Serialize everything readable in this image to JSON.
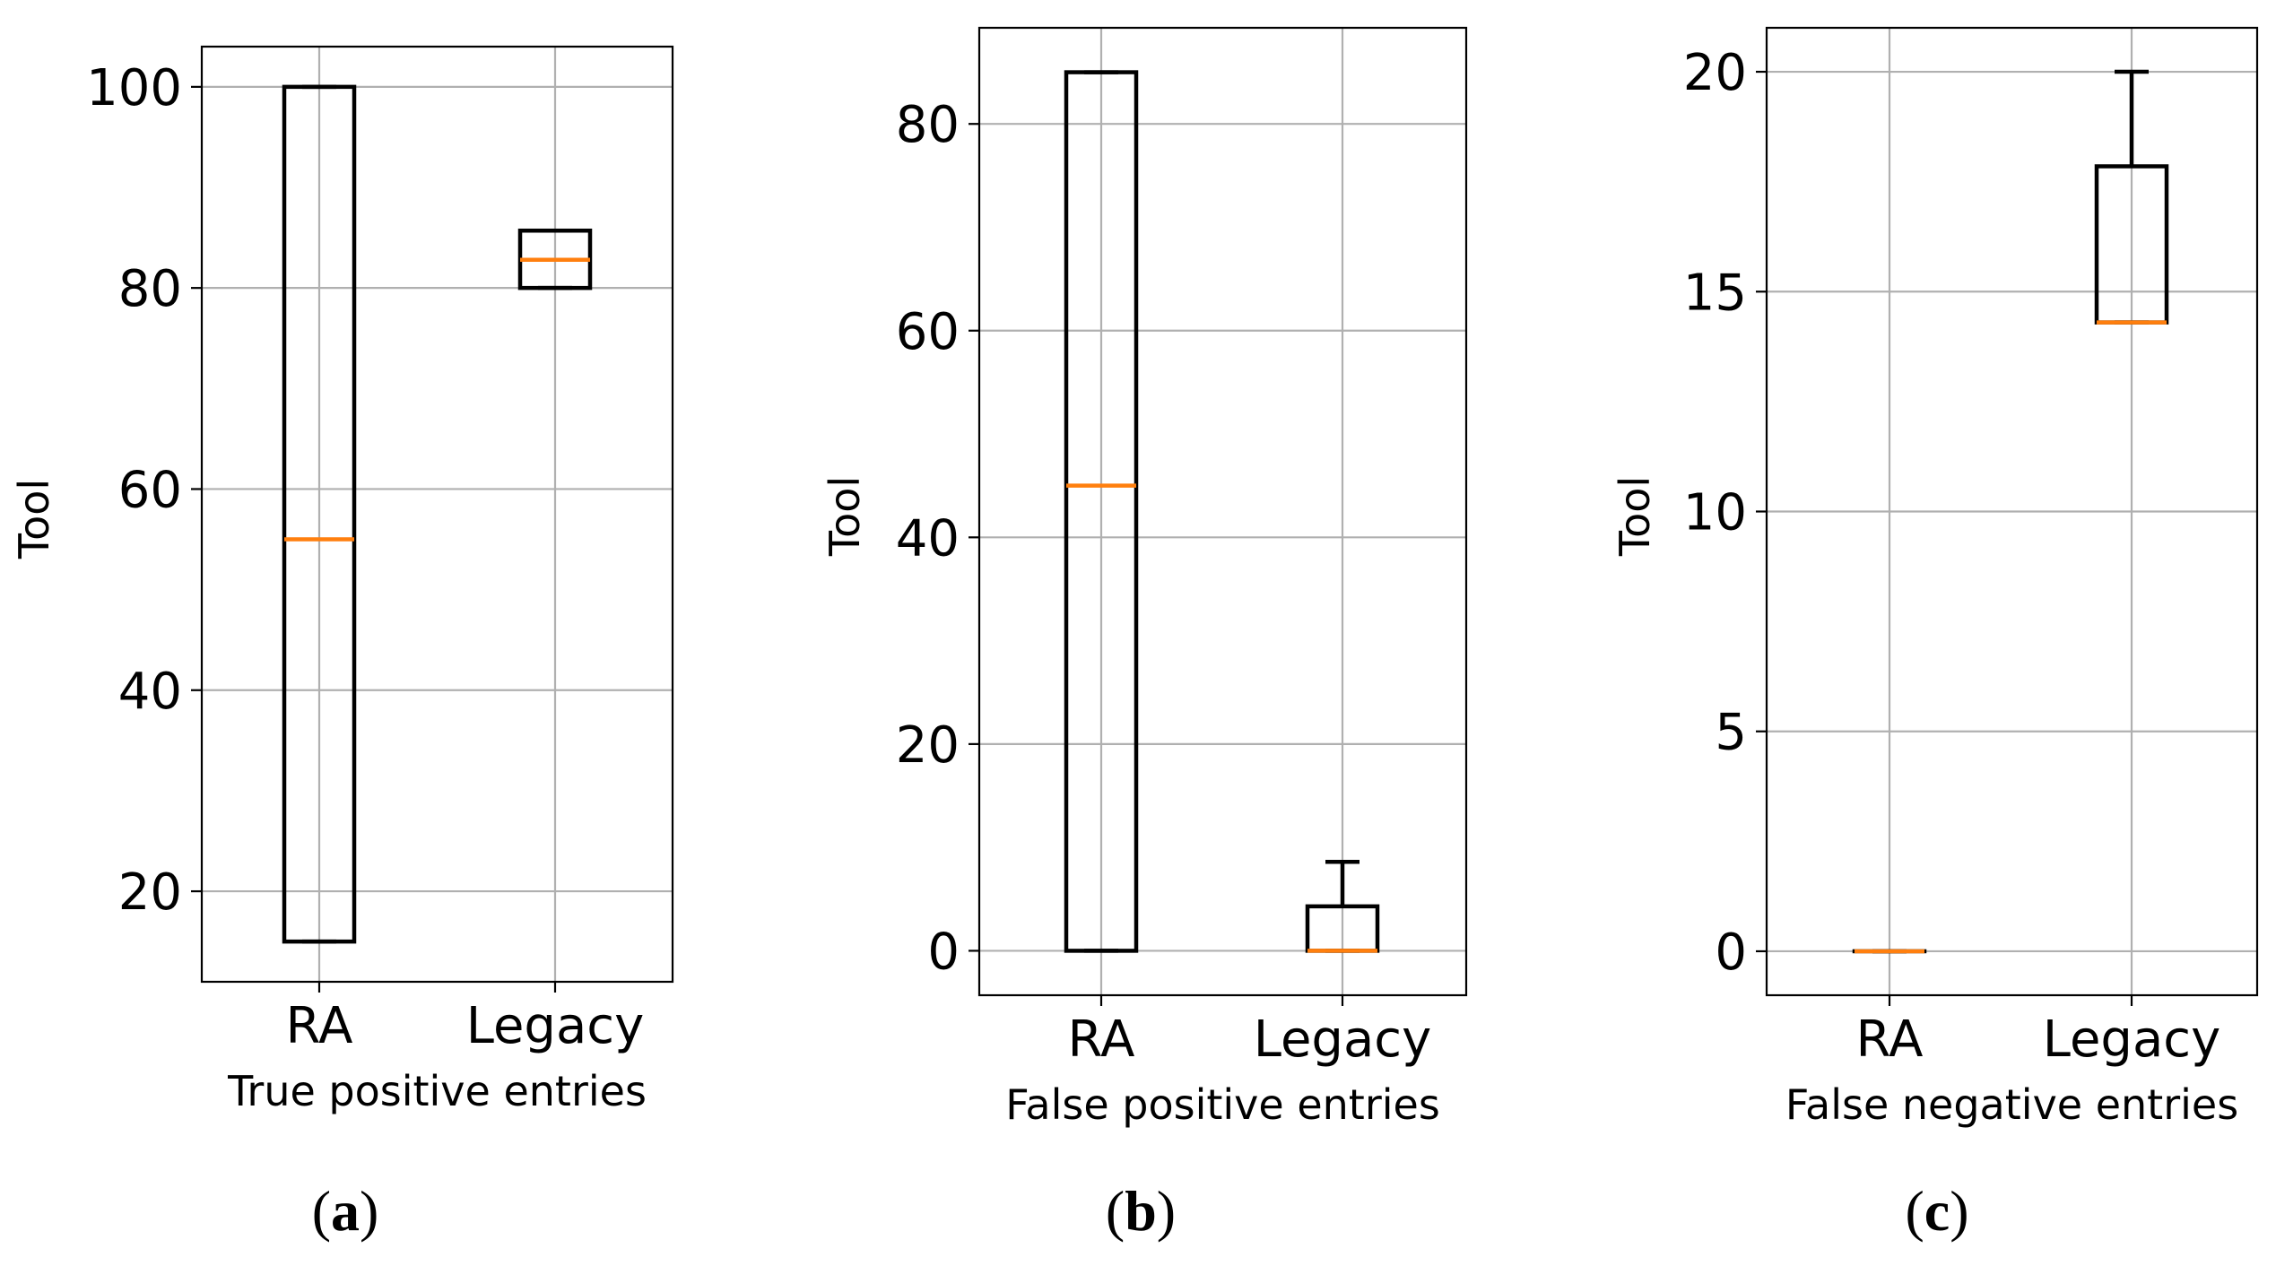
{
  "chart_data": [
    {
      "type": "box",
      "panel": "a",
      "ylabel": "Tool",
      "xlabel": "True positive entries",
      "categories": [
        "RA",
        "Legacy"
      ],
      "ylim": [
        11,
        104
      ],
      "yticks": [
        20,
        40,
        60,
        80,
        100
      ],
      "grid": true,
      "boxes": [
        {
          "category": "RA",
          "whislo": 15,
          "q1": 15,
          "med": 55,
          "q3": 100,
          "whishi": 100
        },
        {
          "category": "Legacy",
          "whislo": 80,
          "q1": 80,
          "med": 82.8,
          "q3": 85.7,
          "whishi": 85.7
        }
      ]
    },
    {
      "type": "box",
      "panel": "b",
      "ylabel": "Tool",
      "xlabel": "False positive entries",
      "categories": [
        "RA",
        "Legacy"
      ],
      "ylim": [
        -4.3,
        89.3
      ],
      "yticks": [
        0,
        20,
        40,
        60,
        80
      ],
      "grid": true,
      "boxes": [
        {
          "category": "RA",
          "whislo": 0,
          "q1": 0,
          "med": 45,
          "q3": 85,
          "whishi": 85
        },
        {
          "category": "Legacy",
          "whislo": 0,
          "q1": 0,
          "med": 0,
          "q3": 4.3,
          "whishi": 8.6
        }
      ]
    },
    {
      "type": "box",
      "panel": "c",
      "ylabel": "Tool",
      "xlabel": "False negative entries",
      "categories": [
        "RA",
        "Legacy"
      ],
      "ylim": [
        -1,
        21
      ],
      "yticks": [
        0,
        5,
        10,
        15,
        20
      ],
      "grid": true,
      "boxes": [
        {
          "category": "RA",
          "whislo": 0,
          "q1": 0,
          "med": 0,
          "q3": 0,
          "whishi": 0
        },
        {
          "category": "Legacy",
          "whislo": 14.3,
          "q1": 14.3,
          "med": 14.3,
          "q3": 17.85,
          "whishi": 20
        }
      ]
    }
  ],
  "panel_labels": [
    {
      "open": "(",
      "letter": "a",
      "close": ")"
    },
    {
      "open": "(",
      "letter": "b",
      "close": ")"
    },
    {
      "open": "(",
      "letter": "c",
      "close": ")"
    }
  ],
  "colors": {
    "box": "#000000",
    "median": "#ff7f0e",
    "grid": "#b0b0b0",
    "axes": "#000000"
  }
}
